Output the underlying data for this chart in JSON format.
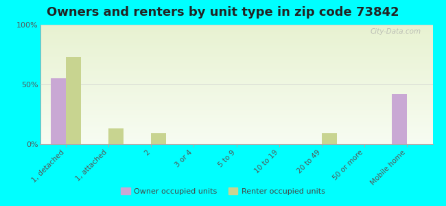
{
  "title": "Owners and renters by unit type in zip code 73842",
  "categories": [
    "1, detached",
    "1, attached",
    "2",
    "3 or 4",
    "5 to 9",
    "10 to 19",
    "20 to 49",
    "50 or more",
    "Mobile home"
  ],
  "owner_values": [
    55,
    0,
    0,
    0,
    0,
    0,
    0,
    0,
    42
  ],
  "renter_values": [
    73,
    13,
    9,
    0,
    0,
    0,
    9,
    0,
    0
  ],
  "owner_color": "#c9a8d4",
  "renter_color": "#c8d490",
  "background_color": "#00ffff",
  "yticks": [
    0,
    50,
    100
  ],
  "ylim": [
    0,
    100
  ],
  "ylabel_labels": [
    "0%",
    "50%",
    "100%"
  ],
  "bar_width": 0.35,
  "legend_owner": "Owner occupied units",
  "legend_renter": "Renter occupied units",
  "watermark": "City-Data.com",
  "title_fontsize": 13
}
